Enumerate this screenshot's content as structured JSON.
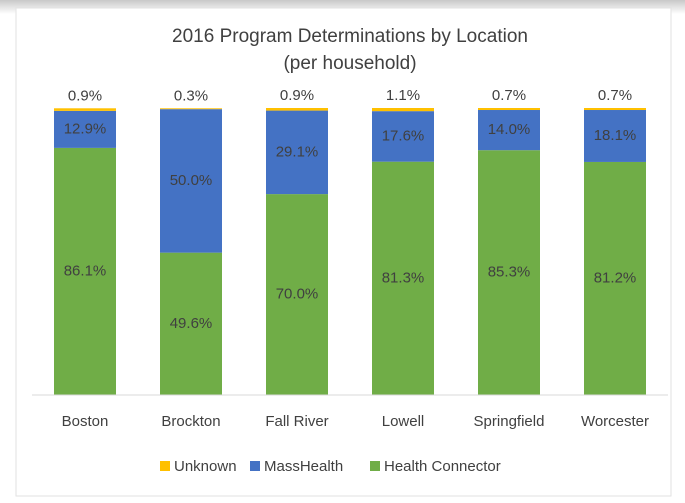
{
  "chart_data": {
    "type": "stacked_bar",
    "title": "2016 Program Determinations by Location",
    "subtitle": "(per household)",
    "categories": [
      "Boston",
      "Brockton",
      "Fall River",
      "Lowell",
      "Springfield",
      "Worcester"
    ],
    "series": [
      {
        "name": "Health Connector",
        "color": "#70ad47",
        "values": [
          86.1,
          49.6,
          70.0,
          81.3,
          85.3,
          81.2
        ],
        "value_labels": [
          "86.1%",
          "49.6%",
          "70.0%",
          "81.3%",
          "85.3%",
          "81.2%"
        ]
      },
      {
        "name": "MassHealth",
        "color": "#4472c4",
        "values": [
          12.9,
          50.0,
          29.1,
          17.6,
          14.0,
          18.1
        ],
        "value_labels": [
          "12.9%",
          "50.0%",
          "29.1%",
          "17.6%",
          "14.0%",
          "18.1%"
        ]
      },
      {
        "name": "Unknown",
        "color": "#ffc000",
        "values": [
          0.9,
          0.3,
          0.9,
          1.1,
          0.7,
          0.7
        ],
        "value_labels": [
          "0.9%",
          "0.3%",
          "0.9%",
          "1.1%",
          "0.7%",
          "0.7%"
        ]
      }
    ],
    "legend_order": [
      "Unknown",
      "MassHealth",
      "Health Connector"
    ],
    "ylim": [
      0,
      100
    ],
    "legend": "bottom"
  }
}
